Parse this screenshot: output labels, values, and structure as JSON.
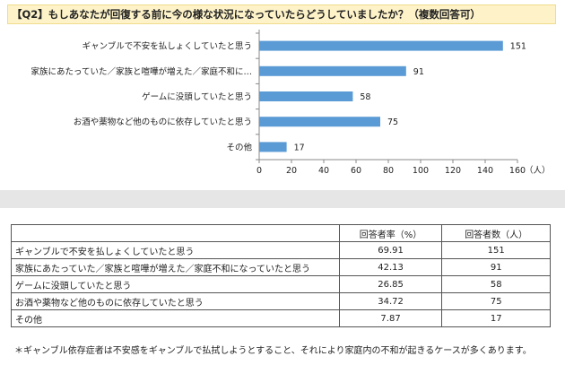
{
  "chart_data": {
    "type": "bar",
    "orientation": "horizontal",
    "title": "【Q2】もしあなたが回復する前に今の様な状況になっていたらどうしていましたか？（複数回答可）",
    "categories": [
      "ギャンブルで不安を払しょくしていたと思う",
      "家族にあたっていた／家族と喧嘩が増えた／家庭不和に…",
      "ゲームに没頭していたと思う",
      "お酒や薬物など他のものに依存していたと思う",
      "その他"
    ],
    "values": [
      151,
      91,
      58,
      75,
      17
    ],
    "xlim": [
      0,
      160
    ],
    "xticks": [
      "0",
      "20",
      "40",
      "60",
      "80",
      "100",
      "120",
      "140",
      "160"
    ],
    "xunit": "（人）",
    "bar_color": "#5b9bd5",
    "grid": false
  },
  "table": {
    "headers": [
      "",
      "回答者率（%）",
      "回答者数（人）"
    ],
    "rows": [
      {
        "label": "ギャンブルで不安を払しょくしていたと思う",
        "rate": "69.91",
        "count": "151"
      },
      {
        "label": "家族にあたっていた／家族と喧嘩が増えた／家庭不和になっていたと思う",
        "rate": "42.13",
        "count": "91"
      },
      {
        "label": "ゲームに没頭していたと思う",
        "rate": "26.85",
        "count": "58"
      },
      {
        "label": "お酒や薬物など他のものに依存していたと思う",
        "rate": "34.72",
        "count": "75"
      },
      {
        "label": "その他",
        "rate": "7.87",
        "count": "17"
      }
    ]
  },
  "footnote": "＊ギャンブル依存症者は不安感をギャンブルで払拭しようとすること、それにより家庭内の不和が起きるケースが多くあります。"
}
